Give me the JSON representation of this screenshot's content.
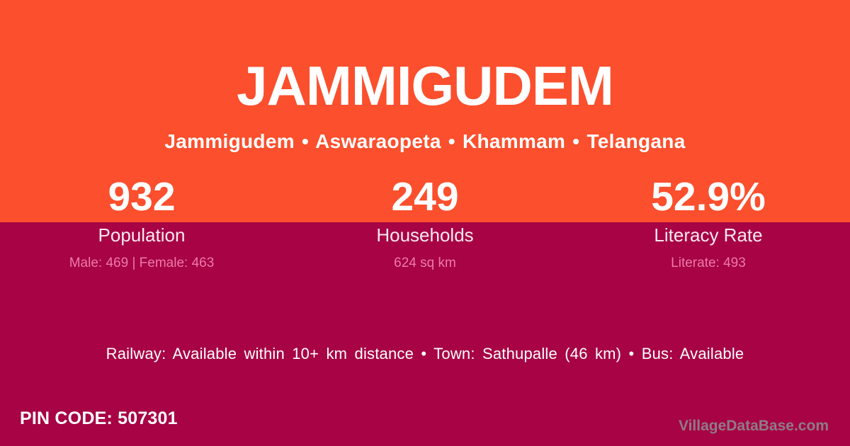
{
  "colors": {
    "top_band": "#fb4f2d",
    "bottom_band": "#a70345",
    "primary_text": "#ffffff",
    "stat_label_text": "#fbe9f1",
    "stat_detail_text": "#ee7aa6",
    "watermark_text": "#8f7b85"
  },
  "header": {
    "title": "JAMMIGUDEM",
    "breadcrumb": "Jammigudem • Aswaraopeta • Khammam • Telangana"
  },
  "stats": [
    {
      "value": "932",
      "label": "Population",
      "detail": "Male: 469 | Female: 463"
    },
    {
      "value": "249",
      "label": "Households",
      "detail": "624 sq km"
    },
    {
      "value": "52.9%",
      "label": "Literacy Rate",
      "detail": "Literate: 493"
    }
  ],
  "facts_line": "Railway: Available within 10+ km distance  •  Town: Sathupalle (46 km)  •  Bus: Available",
  "footer": {
    "pin_code": "PIN CODE: 507301",
    "watermark": "VillageDataBase.com"
  }
}
